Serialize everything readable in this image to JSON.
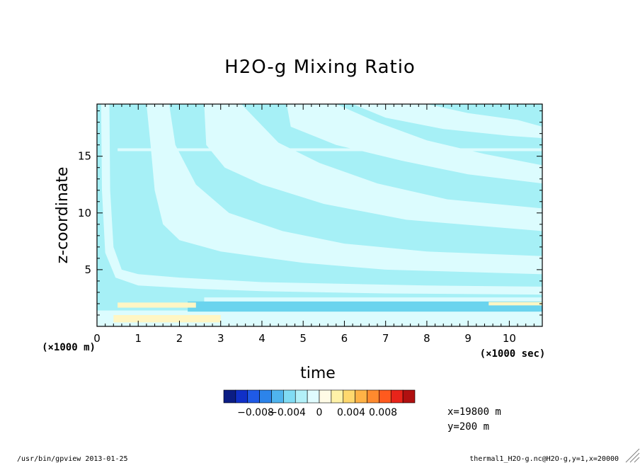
{
  "chart_data": {
    "type": "heatmap",
    "title": "H2O-g Mixing Ratio",
    "xlabel": "time",
    "ylabel": "z-coordinate",
    "x_unit_label": "(×1000 sec)",
    "y_unit_label": "(×1000 m)",
    "x_ticks": [
      "0",
      "1",
      "2",
      "3",
      "4",
      "5",
      "6",
      "7",
      "8",
      "9",
      "10"
    ],
    "y_ticks": [
      "5",
      "10",
      "15"
    ],
    "xlim": [
      0,
      10.8
    ],
    "ylim": [
      0,
      19.6
    ],
    "colorbar": {
      "colors": [
        "#0b1d84",
        "#1030c8",
        "#1f5ae6",
        "#2c84ea",
        "#4fb4ee",
        "#80dcf4",
        "#b2f0f8",
        "#e0fcff",
        "#fffbe6",
        "#fff2a8",
        "#ffd86e",
        "#ffb246",
        "#ff8a2e",
        "#ff5a1e",
        "#e8241a",
        "#b01010"
      ],
      "tick_labels": [
        "−0.008",
        "−0.004",
        "0",
        "0.004",
        "0.008"
      ],
      "tick_values": [
        -0.008,
        -0.004,
        0,
        0.004,
        0.008
      ]
    },
    "fields": {
      "background_color": "#a6f0f6",
      "light_band_color": "#dcfcfe",
      "dark_band_color": "#6ad4ee",
      "positive_band_color": "#fff6c4"
    },
    "light_bands": [
      [
        [
          0.3,
          19.6
        ],
        [
          0.32,
          12
        ],
        [
          0.4,
          7
        ],
        [
          0.6,
          5
        ],
        [
          1.0,
          4.6
        ],
        [
          2.0,
          4.3
        ],
        [
          4.0,
          3.9
        ],
        [
          8.0,
          3.6
        ],
        [
          10.8,
          3.5
        ],
        [
          10.8,
          2.8
        ],
        [
          7.0,
          2.9
        ],
        [
          4.0,
          3.1
        ],
        [
          2.5,
          3.3
        ],
        [
          1.0,
          3.6
        ],
        [
          0.45,
          4.3
        ],
        [
          0.2,
          6.5
        ],
        [
          0.12,
          12
        ],
        [
          0.1,
          19.6
        ]
      ],
      [
        [
          1.2,
          19.6
        ],
        [
          1.3,
          16
        ],
        [
          1.4,
          12
        ],
        [
          1.6,
          9
        ],
        [
          2.0,
          7.6
        ],
        [
          3.0,
          6.6
        ],
        [
          5.0,
          5.6
        ],
        [
          7.0,
          5.0
        ],
        [
          10.8,
          4.6
        ],
        [
          10.8,
          6.2
        ],
        [
          8.0,
          6.6
        ],
        [
          6.0,
          7.3
        ],
        [
          4.5,
          8.4
        ],
        [
          3.2,
          10.0
        ],
        [
          2.4,
          12.5
        ],
        [
          1.9,
          16
        ],
        [
          1.75,
          19.6
        ]
      ],
      [
        [
          2.6,
          19.6
        ],
        [
          2.65,
          16
        ],
        [
          3.1,
          14
        ],
        [
          4.0,
          12.5
        ],
        [
          5.5,
          10.8
        ],
        [
          7.5,
          9.4
        ],
        [
          10.8,
          8.4
        ],
        [
          10.8,
          10.4
        ],
        [
          8.5,
          11.2
        ],
        [
          6.8,
          12.6
        ],
        [
          5.4,
          14.4
        ],
        [
          4.4,
          16.2
        ],
        [
          3.5,
          19.6
        ]
      ],
      [
        [
          4.6,
          19.6
        ],
        [
          4.7,
          17.6
        ],
        [
          5.8,
          16
        ],
        [
          7.4,
          14.6
        ],
        [
          9.0,
          13.4
        ],
        [
          10.8,
          12.6
        ],
        [
          10.8,
          14.2
        ],
        [
          9.4,
          15.2
        ],
        [
          8.0,
          16.4
        ],
        [
          6.8,
          18.0
        ],
        [
          5.8,
          19.6
        ]
      ],
      [
        [
          6.2,
          19.6
        ],
        [
          7.0,
          18.4
        ],
        [
          8.4,
          17.4
        ],
        [
          10.0,
          16.8
        ],
        [
          10.8,
          16.6
        ],
        [
          10.8,
          17.6
        ],
        [
          10.2,
          18.2
        ],
        [
          9.0,
          18.8
        ],
        [
          8.0,
          19.6
        ]
      ]
    ]
  },
  "info": {
    "x_position": "x=19800 m",
    "y_position": "y=200 m"
  },
  "footer": {
    "left": "/usr/bin/gpview  2013-01-25",
    "right": "thermal1_H2O-g.nc@H2O-g,y=1,x=20000"
  }
}
